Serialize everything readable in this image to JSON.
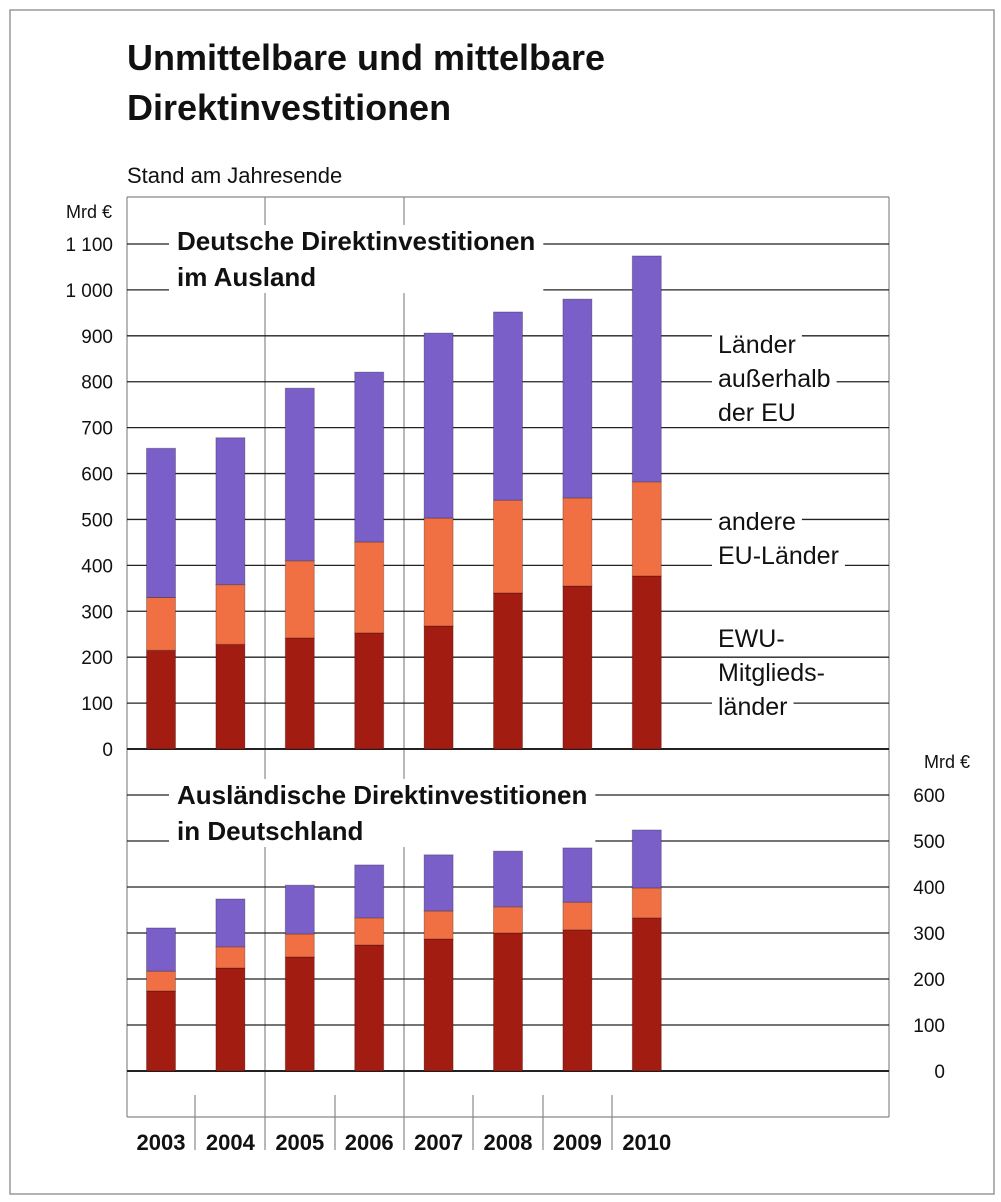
{
  "title": "Unmittelbare und mittelbare\nDirektinvestitionen",
  "subtitle": "Stand am Jahresende",
  "chart_data": [
    {
      "type": "bar",
      "stacked": true,
      "title": "Deutsche Direktinvestitionen\nim Ausland",
      "ylabel": "Mrd €",
      "ylim": [
        0,
        1100
      ],
      "yticks": [
        0,
        100,
        200,
        300,
        400,
        500,
        600,
        700,
        800,
        900,
        {
          "value": 1000,
          "label": "1 000"
        },
        {
          "value": 1100,
          "label": "1 100"
        }
      ],
      "grid": true,
      "legend": "right",
      "axis_side": "left",
      "series": [
        {
          "name": "EWU-\nMitglieds-\nländer",
          "color": "#a31c12",
          "values": [
            215,
            228,
            242,
            253,
            268,
            340,
            355,
            377
          ]
        },
        {
          "name": "andere\nEU-Länder",
          "color": "#f07044",
          "values": [
            115,
            130,
            168,
            198,
            235,
            202,
            192,
            205
          ]
        },
        {
          "name": "Länder\naußerhalb\nder EU",
          "color": "#7a5fc8",
          "values": [
            325,
            320,
            376,
            370,
            403,
            410,
            433,
            492
          ]
        }
      ]
    },
    {
      "type": "bar",
      "stacked": true,
      "title": "Ausländische Direktinvestitionen\nin Deutschland",
      "ylabel": "Mrd €",
      "categories": [
        "2003",
        "2004",
        "2005",
        "2006",
        "2007",
        "2008",
        "2009",
        "2010"
      ],
      "ylim": [
        0,
        600
      ],
      "yticks": [
        0,
        100,
        200,
        300,
        400,
        500,
        600
      ],
      "grid": true,
      "axis_side": "right",
      "series": [
        {
          "color": "#a31c12",
          "values": [
            174,
            224,
            248,
            274,
            287,
            300,
            307,
            333
          ]
        },
        {
          "color": "#f07044",
          "values": [
            43,
            46,
            50,
            59,
            61,
            57,
            60,
            65
          ]
        },
        {
          "color": "#7a5fc8",
          "values": [
            94,
            104,
            106,
            115,
            122,
            121,
            118,
            126
          ]
        }
      ]
    }
  ]
}
